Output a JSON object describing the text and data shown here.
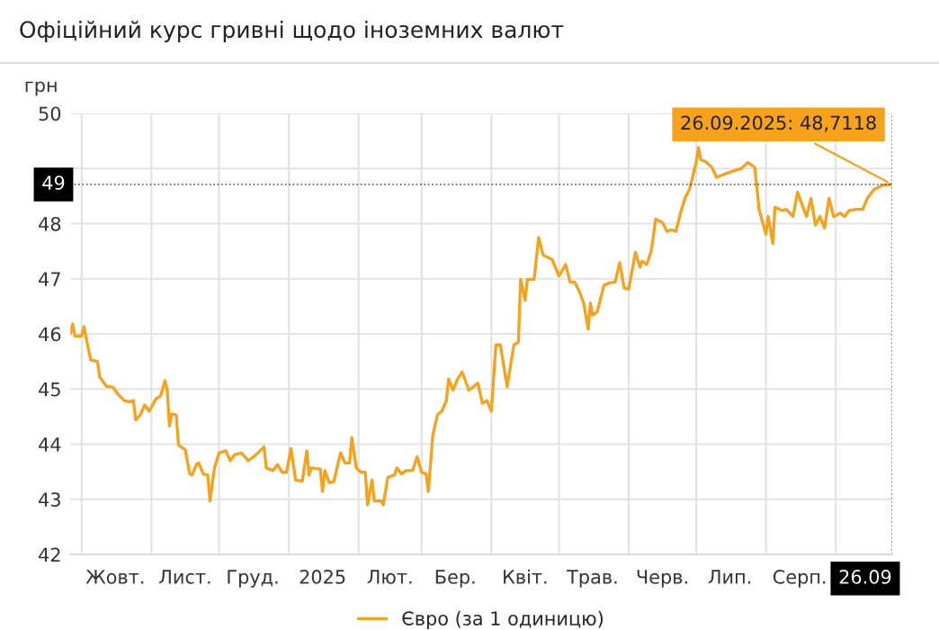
{
  "chart_data": {
    "type": "line",
    "title": "Офіційний курс гривні щодо іноземних валют",
    "ylabel": "грн",
    "xlim": [
      "2024-09-26",
      "2025-09-26"
    ],
    "ylim": [
      42,
      50
    ],
    "yticks": [
      42,
      43,
      44,
      45,
      46,
      47,
      48,
      {
        "value": 49,
        "label": null
      },
      50
    ],
    "xticks": [
      {
        "value": "2024-10-01",
        "label": null
      },
      {
        "value": "2024-11-01",
        "label": null
      },
      {
        "value": "2024-12-01",
        "label": null
      },
      {
        "value": "2025-01-01",
        "label": null
      },
      {
        "value": "2025-02-01",
        "label": null
      },
      {
        "value": "2025-03-01",
        "label": null
      },
      {
        "value": "2025-04-01",
        "label": null
      },
      {
        "value": "2025-05-01",
        "label": null
      },
      {
        "value": "2025-06-01",
        "label": null
      },
      {
        "value": "2025-07-01",
        "label": null
      },
      {
        "value": "2025-08-01",
        "label": null
      },
      {
        "value": "2025-09-01",
        "label": null
      },
      {
        "value": "2024-10-16",
        "label": "Жовт."
      },
      {
        "value": "2024-11-16",
        "label": "Лист."
      },
      {
        "value": "2024-12-16",
        "label": "Груд."
      },
      {
        "value": "2025-01-16",
        "label": "2025"
      },
      {
        "value": "2025-02-15",
        "label": "Лют."
      },
      {
        "value": "2025-03-16",
        "label": "Бер."
      },
      {
        "value": "2025-04-16",
        "label": "Квіт."
      },
      {
        "value": "2025-05-16",
        "label": "Трав."
      },
      {
        "value": "2025-06-16",
        "label": "Черв."
      },
      {
        "value": "2025-07-16",
        "label": "Лип."
      },
      {
        "value": "2025-08-16",
        "label": "Серп."
      },
      {
        "value": "2025-09-26",
        "label": "26.09"
      }
    ],
    "grid": true,
    "legend": "bottom",
    "marker": "none",
    "line_style": "solid",
    "ref_lines": [
      {
        "axis": "y",
        "value": 48.7118,
        "label": "49",
        "line_style": "dotted",
        "color": "#000000"
      },
      {
        "axis": "x",
        "value": "2025-09-26",
        "line_style": "dotted",
        "color": "#000000"
      }
    ],
    "annotations": [
      {
        "text": "26.09.2025: 48,7118",
        "x": "2025-09-26",
        "y": 48.7118
      }
    ],
    "series": [
      {
        "name": "Євро (за 1 одиницю)",
        "color": "#f7a21b",
        "x": [
          "2024-09-26",
          "2024-09-27",
          "2024-09-28",
          "2024-10-01",
          "2024-10-02",
          "2024-10-04",
          "2024-10-05",
          "2024-10-08",
          "2024-10-09",
          "2024-10-12",
          "2024-10-15",
          "2024-10-17",
          "2024-10-20",
          "2024-10-22",
          "2024-10-24",
          "2024-10-25",
          "2024-10-27",
          "2024-10-29",
          "2024-10-31",
          "2024-11-03",
          "2024-11-05",
          "2024-11-07",
          "2024-11-08",
          "2024-11-09",
          "2024-11-10",
          "2024-11-12",
          "2024-11-13",
          "2024-11-16",
          "2024-11-18",
          "2024-11-19",
          "2024-11-21",
          "2024-11-22",
          "2024-11-24",
          "2024-11-26",
          "2024-11-27",
          "2024-11-29",
          "2024-12-01",
          "2024-12-04",
          "2024-12-06",
          "2024-12-08",
          "2024-12-11",
          "2024-12-14",
          "2024-12-17",
          "2024-12-21",
          "2024-12-22",
          "2024-12-25",
          "2024-12-27",
          "2024-12-29",
          "2024-12-31",
          "2025-01-02",
          "2025-01-04",
          "2025-01-07",
          "2025-01-09",
          "2025-01-10",
          "2025-01-11",
          "2025-01-15",
          "2025-01-16",
          "2025-01-17",
          "2025-01-19",
          "2025-01-21",
          "2025-01-24",
          "2025-01-26",
          "2025-01-28",
          "2025-01-29",
          "2025-01-31",
          "2025-02-02",
          "2025-02-04",
          "2025-02-05",
          "2025-02-07",
          "2025-02-08",
          "2025-02-11",
          "2025-02-12",
          "2025-02-14",
          "2025-02-17",
          "2025-02-18",
          "2025-02-20",
          "2025-02-22",
          "2025-02-25",
          "2025-02-27",
          "2025-03-01",
          "2025-03-03",
          "2025-03-04",
          "2025-03-06",
          "2025-03-08",
          "2025-03-10",
          "2025-03-12",
          "2025-03-13",
          "2025-03-15",
          "2025-03-17",
          "2025-03-19",
          "2025-03-22",
          "2025-03-24",
          "2025-03-26",
          "2025-03-28",
          "2025-03-30",
          "2025-04-01",
          "2025-04-03",
          "2025-04-05",
          "2025-04-08",
          "2025-04-11",
          "2025-04-13",
          "2025-04-14",
          "2025-04-16",
          "2025-04-17",
          "2025-04-20",
          "2025-04-22",
          "2025-04-24",
          "2025-04-28",
          "2025-05-01",
          "2025-05-04",
          "2025-05-06",
          "2025-05-08",
          "2025-05-10",
          "2025-05-12",
          "2025-05-14",
          "2025-05-15",
          "2025-05-16",
          "2025-05-18",
          "2025-05-21",
          "2025-05-23",
          "2025-05-26",
          "2025-05-28",
          "2025-05-30",
          "2025-06-01",
          "2025-06-04",
          "2025-06-06",
          "2025-06-07",
          "2025-06-09",
          "2025-06-11",
          "2025-06-13",
          "2025-06-16",
          "2025-06-18",
          "2025-06-20",
          "2025-06-22",
          "2025-06-24",
          "2025-06-26",
          "2025-06-28",
          "2025-07-01",
          "2025-07-02",
          "2025-07-03",
          "2025-07-05",
          "2025-07-08",
          "2025-07-10",
          "2025-07-13",
          "2025-07-17",
          "2025-07-21",
          "2025-07-24",
          "2025-07-27",
          "2025-07-29",
          "2025-08-01",
          "2025-08-02",
          "2025-08-04",
          "2025-08-05",
          "2025-08-08",
          "2025-08-10",
          "2025-08-13",
          "2025-08-15",
          "2025-08-17",
          "2025-08-19",
          "2025-08-21",
          "2025-08-23",
          "2025-08-25",
          "2025-08-27",
          "2025-08-29",
          "2025-08-31",
          "2025-09-03",
          "2025-09-05",
          "2025-09-07",
          "2025-09-10",
          "2025-09-13",
          "2025-09-15",
          "2025-09-18",
          "2025-09-22",
          "2025-09-26"
        ],
        "values": [
          46.0,
          46.18,
          45.96,
          45.96,
          46.13,
          45.72,
          45.53,
          45.5,
          45.22,
          45.05,
          45.03,
          44.91,
          44.79,
          44.77,
          44.79,
          44.44,
          44.53,
          44.71,
          44.6,
          44.82,
          44.87,
          45.15,
          44.98,
          44.33,
          44.55,
          44.53,
          43.98,
          43.9,
          43.46,
          43.44,
          43.63,
          43.66,
          43.46,
          43.44,
          42.97,
          43.57,
          43.84,
          43.88,
          43.7,
          43.81,
          43.84,
          43.7,
          43.79,
          43.95,
          43.57,
          43.52,
          43.63,
          43.49,
          43.49,
          43.92,
          43.35,
          43.33,
          43.88,
          43.44,
          43.57,
          43.55,
          43.14,
          43.52,
          43.3,
          43.32,
          43.84,
          43.66,
          43.66,
          44.12,
          43.57,
          43.49,
          43.49,
          42.9,
          43.35,
          42.97,
          42.97,
          42.9,
          43.4,
          43.44,
          43.57,
          43.46,
          43.52,
          43.52,
          43.77,
          43.49,
          43.46,
          43.14,
          44.17,
          44.53,
          44.6,
          44.79,
          45.18,
          44.98,
          45.18,
          45.31,
          44.98,
          45.04,
          45.11,
          44.74,
          44.79,
          44.6,
          45.8,
          45.8,
          45.04,
          45.8,
          45.85,
          46.99,
          46.61,
          46.99,
          46.99,
          47.75,
          47.43,
          47.35,
          47.05,
          47.26,
          46.94,
          46.94,
          46.78,
          46.56,
          46.09,
          46.56,
          46.34,
          46.4,
          46.88,
          46.92,
          46.94,
          47.29,
          46.83,
          46.81,
          47.48,
          47.21,
          47.32,
          47.26,
          47.5,
          48.08,
          48.02,
          47.86,
          47.89,
          47.86,
          48.19,
          48.46,
          48.62,
          49.11,
          49.38,
          49.16,
          49.13,
          49.02,
          48.84,
          48.89,
          48.95,
          49.0,
          49.11,
          49.02,
          48.24,
          47.81,
          48.13,
          47.64,
          48.3,
          48.24,
          48.26,
          48.13,
          48.57,
          48.35,
          48.13,
          48.46,
          47.97,
          48.13,
          47.92,
          48.46,
          48.13,
          48.19,
          48.13,
          48.24,
          48.26,
          48.26,
          48.46,
          48.62,
          48.7,
          48.7118
        ]
      }
    ]
  }
}
